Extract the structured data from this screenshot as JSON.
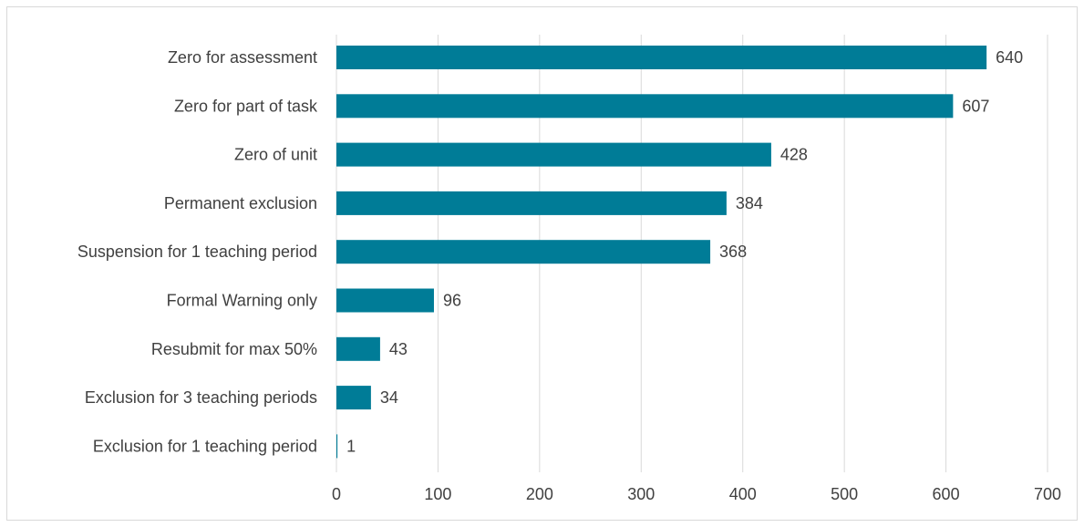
{
  "chart_data": {
    "type": "bar",
    "orientation": "horizontal",
    "categories": [
      "Zero for assessment",
      "Zero for part of task",
      "Zero of unit",
      "Permanent exclusion",
      "Suspension for 1 teaching period",
      "Formal Warning only",
      "Resubmit for max 50%",
      "Exclusion for 3 teaching periods",
      "Exclusion for 1 teaching period"
    ],
    "values": [
      640,
      607,
      428,
      384,
      368,
      96,
      43,
      34,
      1
    ],
    "xlim": [
      0,
      700
    ],
    "xticks": [
      "0",
      "100",
      "200",
      "300",
      "400",
      "500",
      "600",
      "700"
    ],
    "title": "",
    "xlabel": "",
    "ylabel": "",
    "grid": "vertical",
    "legend": "none",
    "colors": {
      "bar": "#007c97",
      "grid": "#d9d9d9",
      "text": "#404040"
    }
  }
}
